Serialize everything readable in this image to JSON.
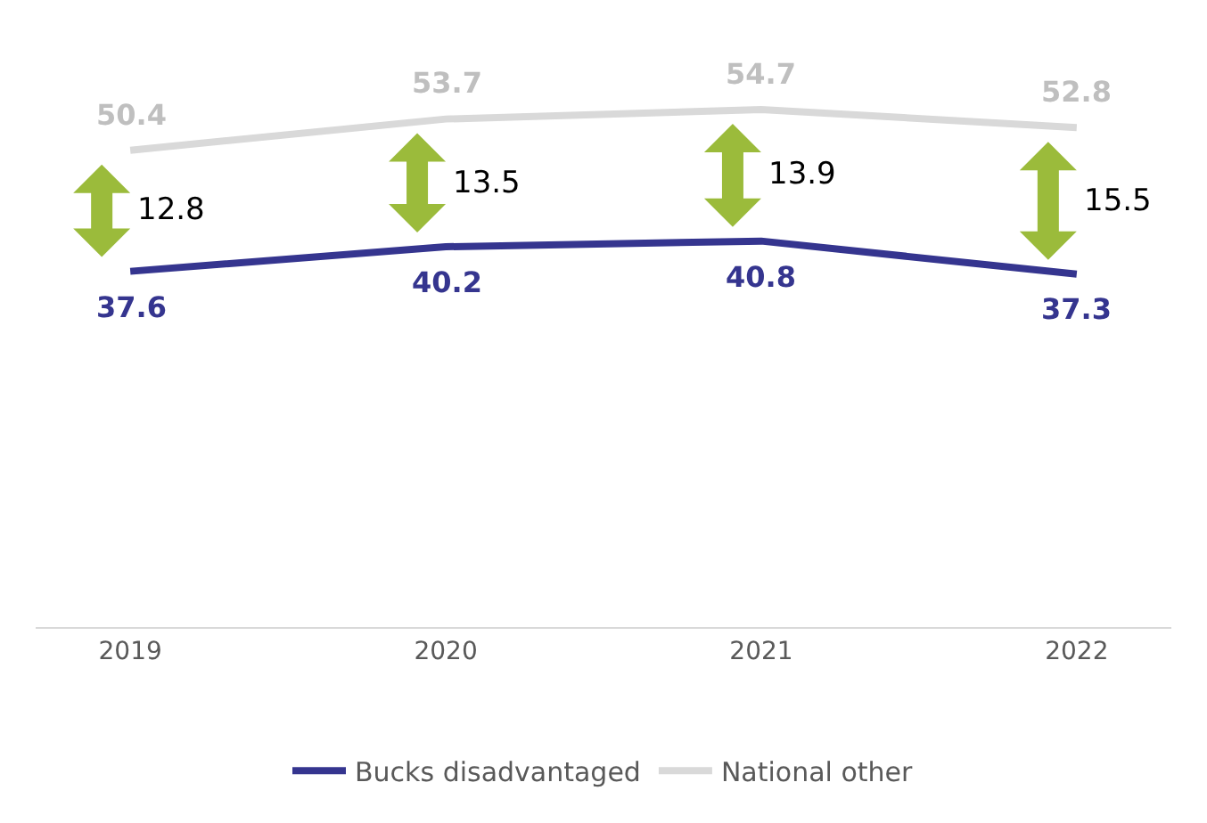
{
  "chart_data": {
    "type": "line",
    "categories": [
      "2019",
      "2020",
      "2021",
      "2022"
    ],
    "series": [
      {
        "name": "Bucks disadvantaged",
        "color": "#35358f",
        "values": [
          37.6,
          40.2,
          40.8,
          37.3
        ]
      },
      {
        "name": "National other",
        "color": "#d9d9d9",
        "values": [
          50.4,
          53.7,
          54.7,
          52.8
        ]
      }
    ],
    "annotations": [
      "12.8",
      "13.5",
      "13.9",
      "15.5"
    ],
    "data_labels": true,
    "grid": false,
    "legend": "bottom",
    "marker": "none",
    "line_style": "solid",
    "tick_labels": "x"
  }
}
